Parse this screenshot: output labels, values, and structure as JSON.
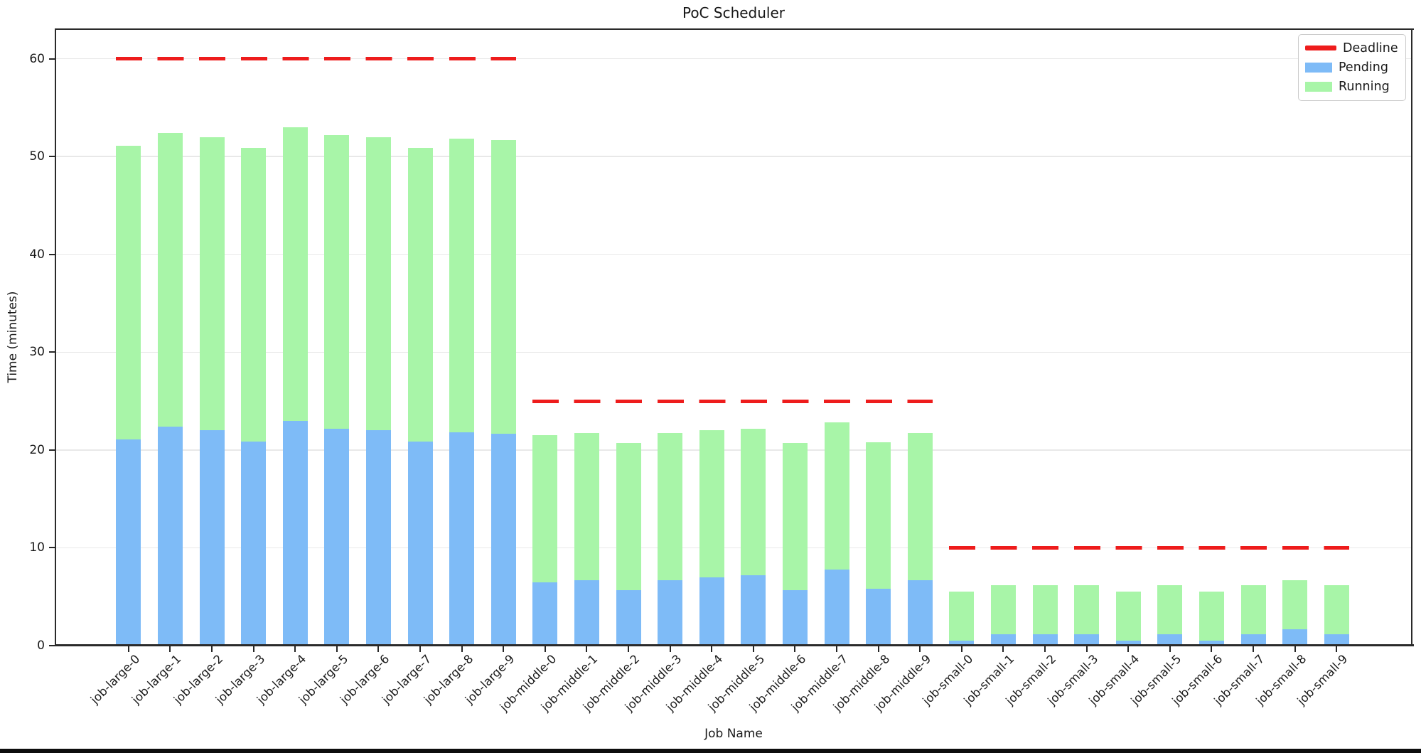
{
  "window": {
    "background": "#ffffff",
    "bottom_bar_color": "#0d0d0d"
  },
  "chart_data": {
    "type": "bar",
    "stacked": true,
    "title": "PoC Scheduler",
    "xlabel": "Job Name",
    "ylabel": "Time (minutes)",
    "ylim": [
      0,
      63
    ],
    "yticks": [
      0,
      10,
      20,
      30,
      40,
      50,
      60
    ],
    "grid": true,
    "legend_position": "upper right",
    "categories": [
      "job-large-0",
      "job-large-1",
      "job-large-2",
      "job-large-3",
      "job-large-4",
      "job-large-5",
      "job-large-6",
      "job-large-7",
      "job-large-8",
      "job-large-9",
      "job-middle-0",
      "job-middle-1",
      "job-middle-2",
      "job-middle-3",
      "job-middle-4",
      "job-middle-5",
      "job-middle-6",
      "job-middle-7",
      "job-middle-8",
      "job-middle-9",
      "job-small-0",
      "job-small-1",
      "job-small-2",
      "job-small-3",
      "job-small-4",
      "job-small-5",
      "job-small-6",
      "job-small-7",
      "job-small-8",
      "job-small-9"
    ],
    "series": [
      {
        "name": "Pending",
        "color": "#7EBBF7",
        "values": [
          21.1,
          22.4,
          22.0,
          20.9,
          23.0,
          22.2,
          22.0,
          20.9,
          21.8,
          21.7,
          6.5,
          6.7,
          5.7,
          6.7,
          7.0,
          7.2,
          5.7,
          7.8,
          5.8,
          6.7,
          0.5,
          1.2,
          1.2,
          1.2,
          0.5,
          1.2,
          0.5,
          1.2,
          1.7,
          1.2
        ]
      },
      {
        "name": "Running",
        "color": "#A8F5A8",
        "values": [
          30,
          30,
          30,
          30,
          30,
          30,
          30,
          30,
          30,
          30,
          15,
          15,
          15,
          15,
          15,
          15,
          15,
          15,
          15,
          15,
          5,
          5,
          5,
          5,
          5,
          5,
          5,
          5,
          5,
          5
        ]
      }
    ],
    "deadlines": [
      {
        "group": "job-large",
        "value": 60,
        "first_index": 0,
        "last_index": 9,
        "color": "#EE1C1C"
      },
      {
        "group": "job-middle",
        "value": 25,
        "first_index": 10,
        "last_index": 19,
        "color": "#EE1C1C"
      },
      {
        "group": "job-small",
        "value": 10,
        "first_index": 20,
        "last_index": 29,
        "color": "#EE1C1C"
      }
    ],
    "legend": [
      {
        "label": "Deadline",
        "swatch": "line",
        "color": "#EE1C1C"
      },
      {
        "label": "Pending",
        "swatch": "patch",
        "color": "#7EBBF7"
      },
      {
        "label": "Running",
        "swatch": "patch",
        "color": "#A8F5A8"
      }
    ],
    "grid_color": "#e8e8e8",
    "spine_color": "#2a2a2a"
  }
}
